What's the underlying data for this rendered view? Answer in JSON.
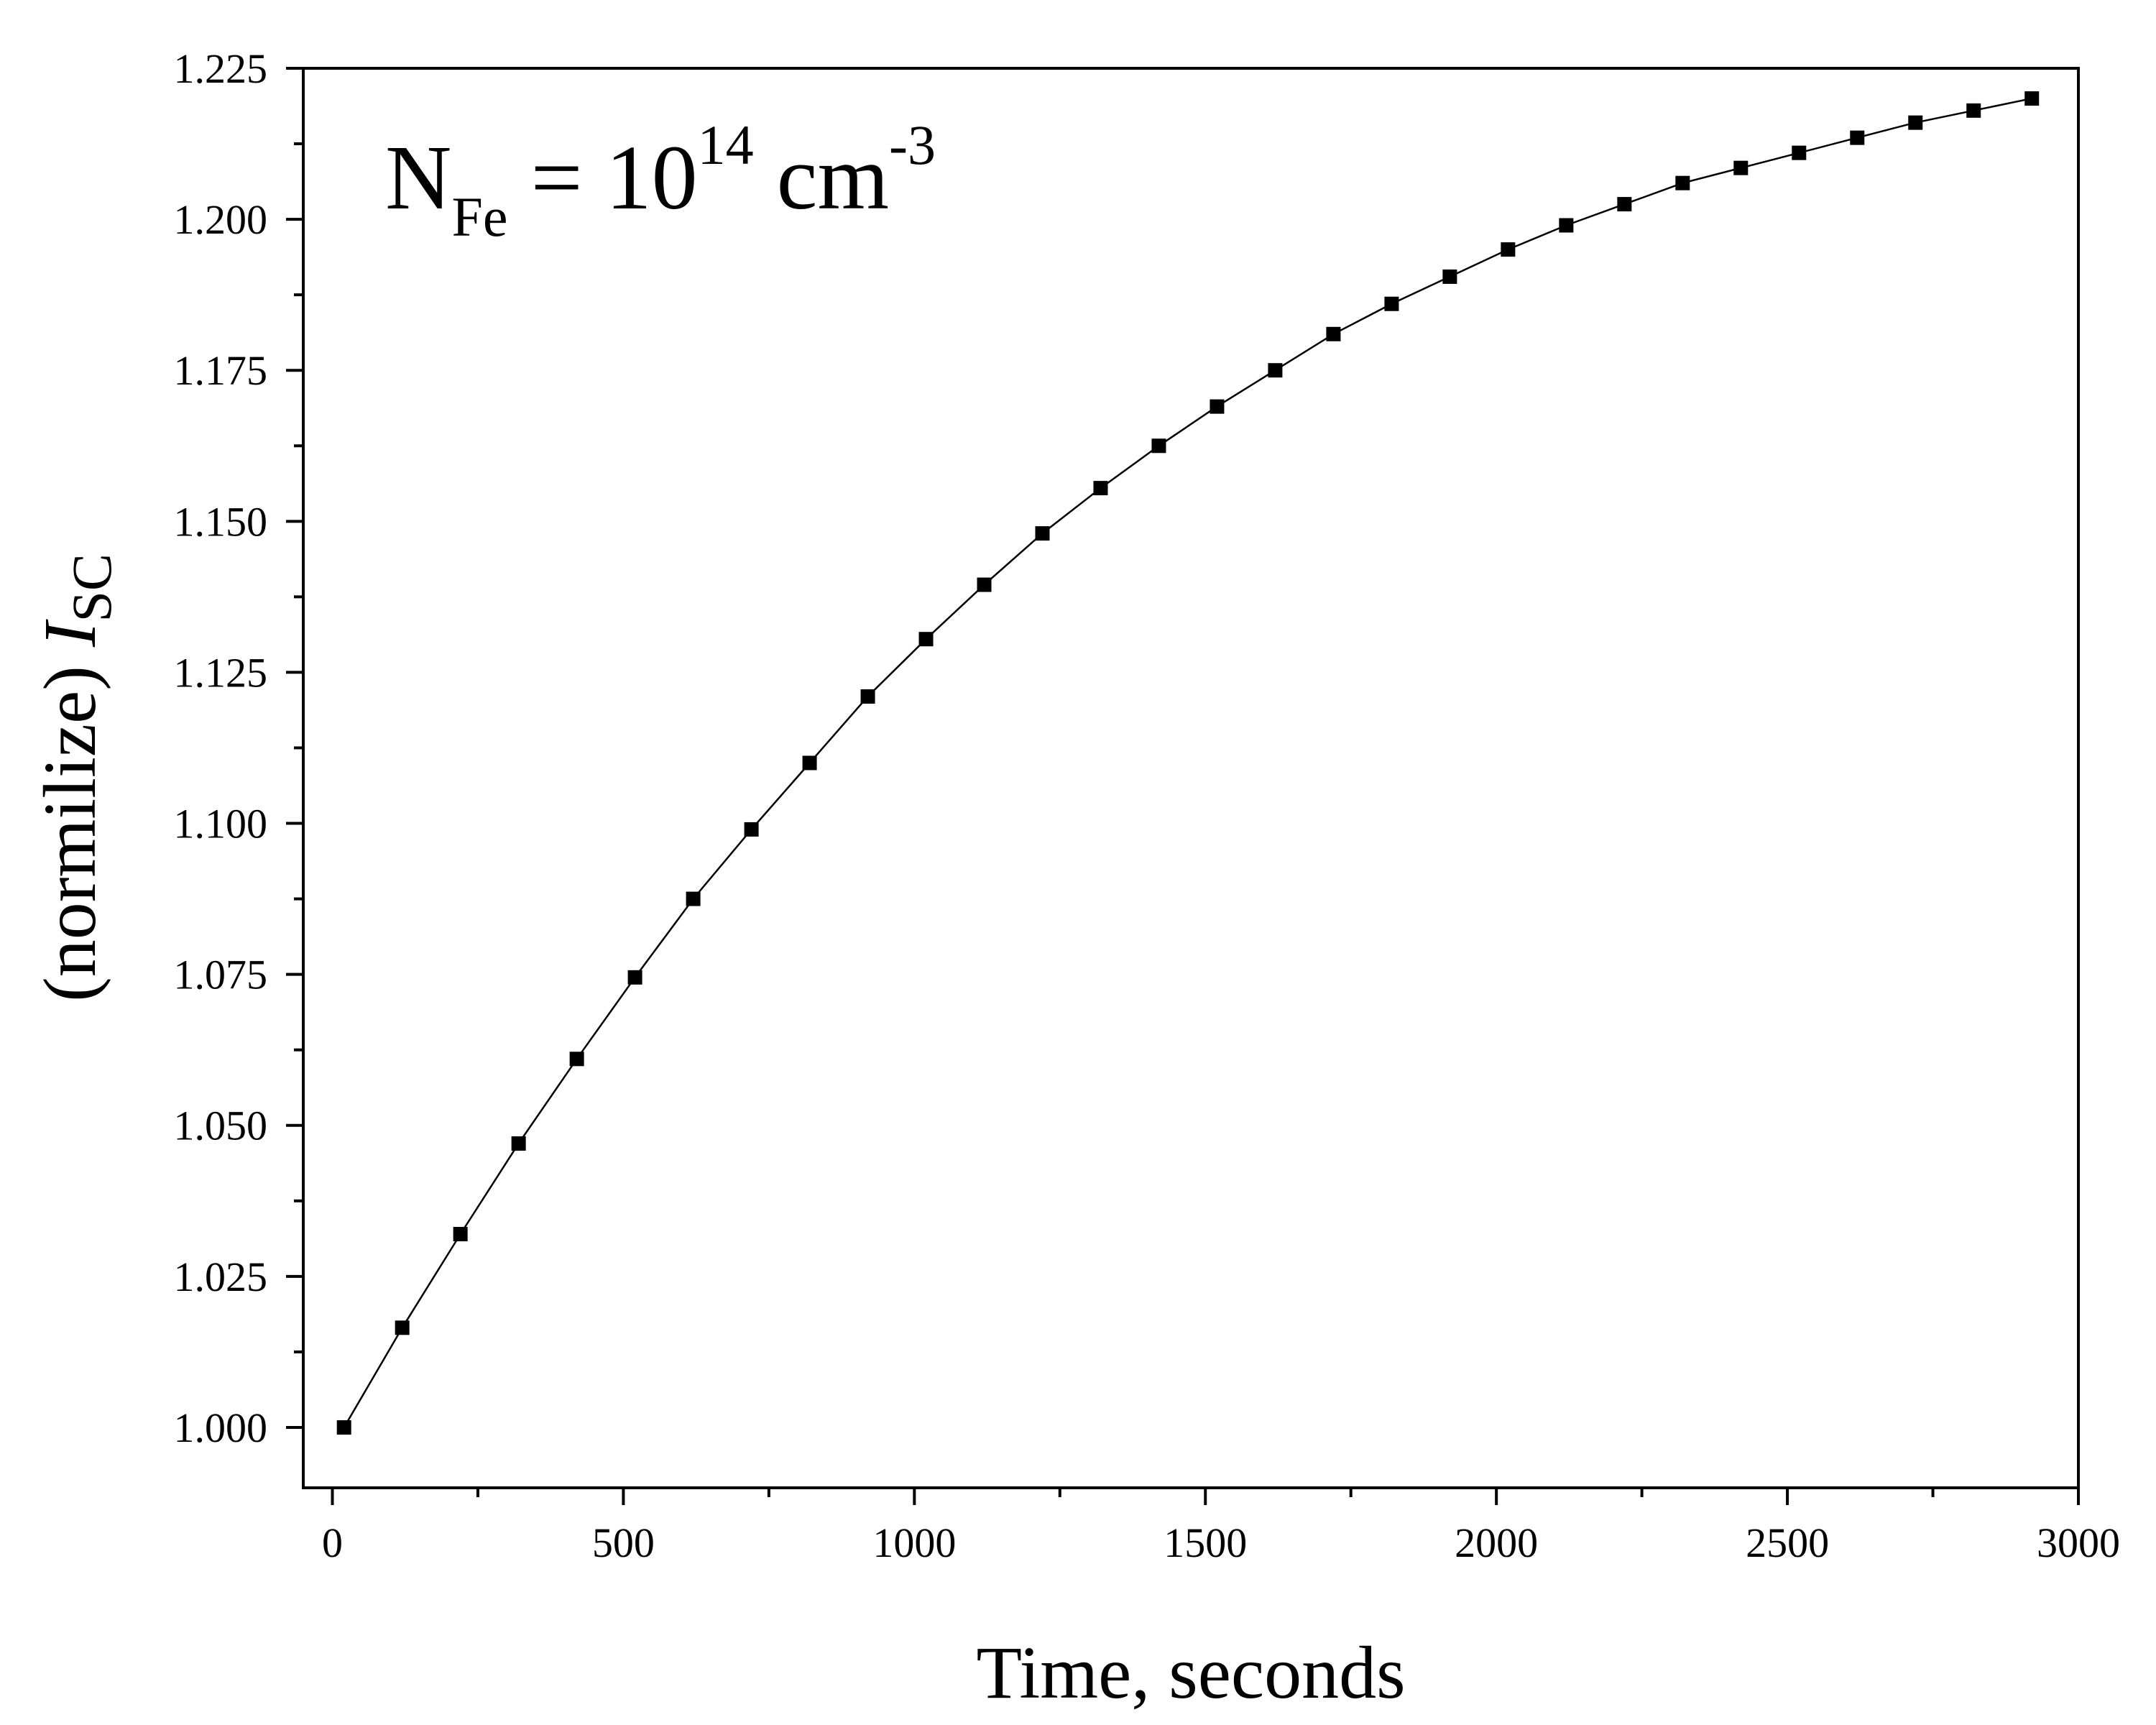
{
  "chart_data": {
    "type": "line",
    "annotation": {
      "base": "N",
      "sub": "Fe",
      "mid": " = 10",
      "sup": "14",
      "unit": " cm",
      "unit_sup": "-3"
    },
    "xlabel": "Time, seconds",
    "ylabel": {
      "prefix": "(normilize) ",
      "var": "I",
      "sub": "SC"
    },
    "xlim": [
      -50,
      3000
    ],
    "ylim": [
      0.99,
      1.225
    ],
    "x_ticks": [
      "0",
      "500",
      "1000",
      "1500",
      "2000",
      "2500",
      "3000"
    ],
    "y_ticks": [
      "1.000",
      "1.025",
      "1.050",
      "1.075",
      "1.100",
      "1.125",
      "1.150",
      "1.175",
      "1.200",
      "1.225"
    ],
    "grid": false,
    "legend": "none",
    "marker": "square",
    "color": "#000000",
    "series": [
      {
        "x": [
          20,
          120,
          220,
          320,
          420,
          520,
          620,
          720,
          820,
          920,
          1020,
          1120,
          1220,
          1320,
          1420,
          1520,
          1620,
          1720,
          1820,
          1920,
          2020,
          2120,
          2220,
          2320,
          2420,
          2520,
          2620,
          2720,
          2820,
          2920
        ],
        "y": [
          1.0,
          1.0165,
          1.032,
          1.047,
          1.061,
          1.0745,
          1.0875,
          1.099,
          1.11,
          1.121,
          1.1305,
          1.1395,
          1.148,
          1.1555,
          1.1625,
          1.169,
          1.175,
          1.181,
          1.186,
          1.1905,
          1.195,
          1.199,
          1.2025,
          1.206,
          1.2085,
          1.211,
          1.2135,
          1.216,
          1.218,
          1.22
        ]
      }
    ]
  }
}
